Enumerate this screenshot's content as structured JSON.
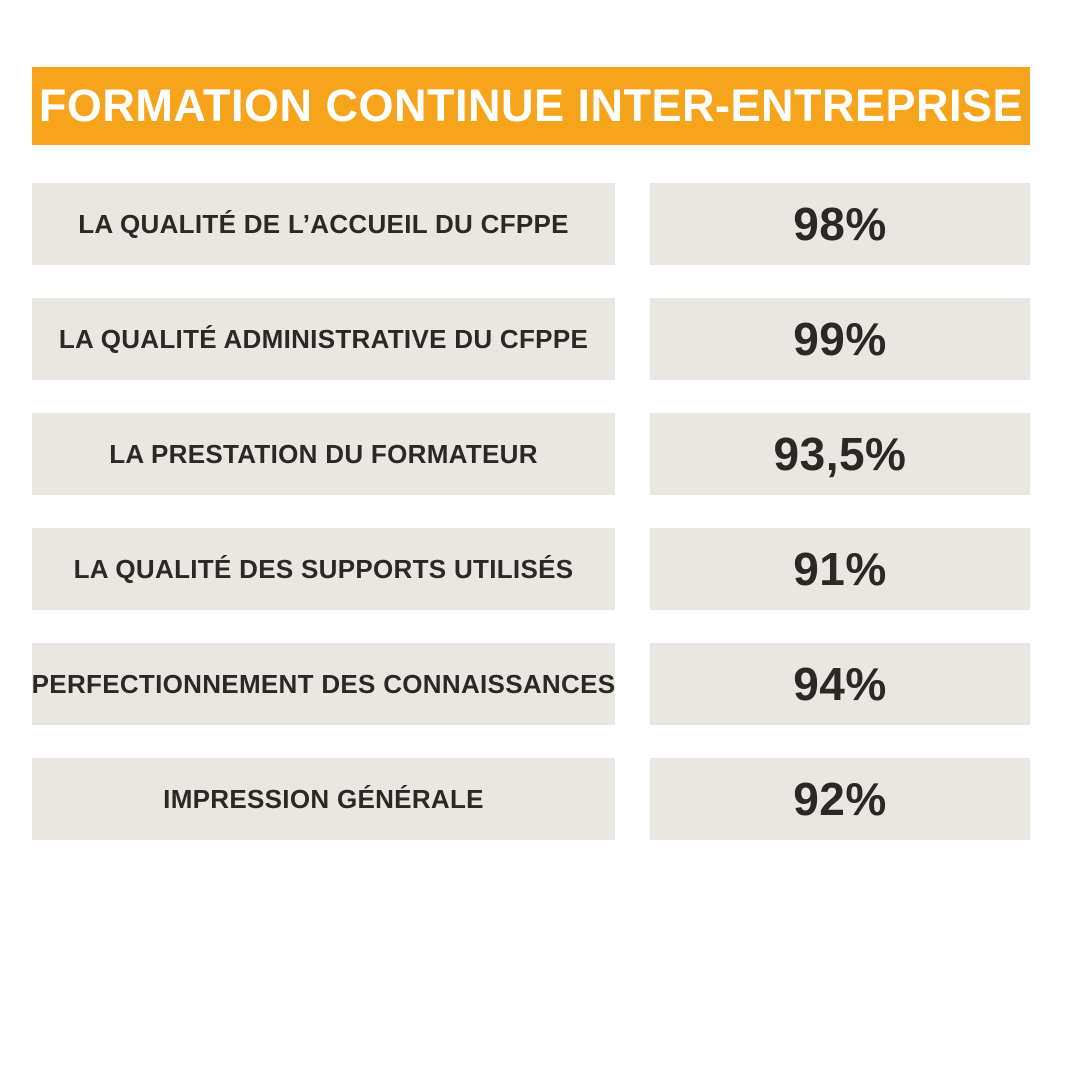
{
  "colors": {
    "background": "#FFFFFF",
    "accent": "#F7A41D",
    "box": "#E9E7E2",
    "text": "#2B2825",
    "header_text": "#FFFFFF"
  },
  "header": {
    "title": "FORMATION CONTINUE INTER-ENTREPRISE"
  },
  "rows": [
    {
      "label": "LA QUALITÉ DE L’ACCUEIL DU CFPPE",
      "value": "98%"
    },
    {
      "label": "LA QUALITÉ ADMINISTRATIVE DU CFPPE",
      "value": "99%"
    },
    {
      "label": "LA PRESTATION DU FORMATEUR",
      "value": "93,5%"
    },
    {
      "label": "LA QUALITÉ DES SUPPORTS UTILISÉS",
      "value": "91%"
    },
    {
      "label": "PERFECTIONNEMENT DES CONNAISSANCES",
      "value": "94%"
    },
    {
      "label": "IMPRESSION GÉNÉRALE",
      "value": "92%"
    }
  ],
  "chart_data": {
    "type": "table",
    "title": "FORMATION CONTINUE INTER-ENTREPRISE",
    "categories": [
      "LA QUALITÉ DE L’ACCUEIL DU CFPPE",
      "LA QUALITÉ ADMINISTRATIVE DU CFPPE",
      "LA PRESTATION DU FORMATEUR",
      "LA QUALITÉ DES SUPPORTS UTILISÉS",
      "PERFECTIONNEMENT DES CONNAISSANCES",
      "IMPRESSION GÉNÉRALE"
    ],
    "values": [
      98,
      99,
      93.5,
      91,
      94,
      92
    ],
    "value_labels": [
      "98%",
      "99%",
      "93,5%",
      "91%",
      "94%",
      "92%"
    ],
    "unit": "%",
    "legend_position": "none",
    "grid": false
  }
}
